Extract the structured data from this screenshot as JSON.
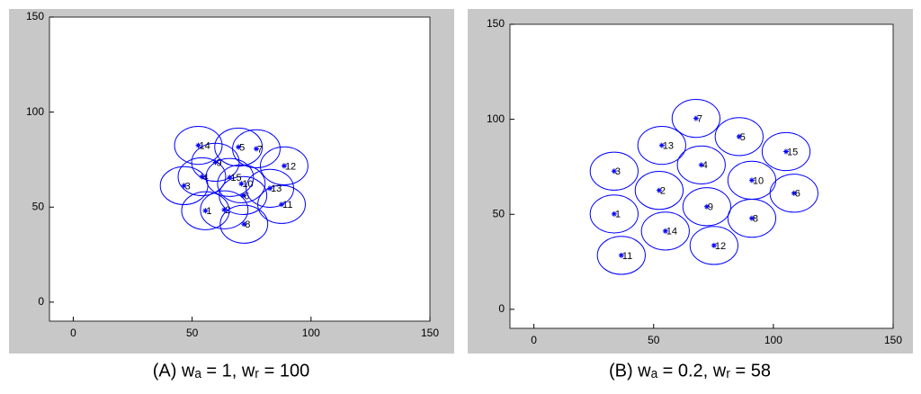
{
  "chart_data": [
    {
      "type": "scatter",
      "caption": "(A) wₐ = 1, wᵣ = 100",
      "color": "#0000ff",
      "radius": 10,
      "point_labels": [
        "1",
        "2",
        "3",
        "4",
        "5",
        "6",
        "7",
        "8",
        "9",
        "10",
        "11",
        "12",
        "13",
        "14",
        "15"
      ],
      "x": [
        55.6,
        63.5,
        46.6,
        54.1,
        69.5,
        71.4,
        77,
        71.8,
        59.8,
        70.7,
        87.6,
        88.7,
        82.7,
        52.6,
        65.8
      ],
      "y": [
        48.1,
        48.6,
        61.3,
        66,
        81.6,
        56.1,
        80.7,
        41,
        73.6,
        62.3,
        51.4,
        71.7,
        59.9,
        82.5,
        65.6
      ],
      "xlim": [
        -10,
        150
      ],
      "ylim": [
        -10,
        150
      ],
      "xticks": [
        0,
        50,
        100,
        150
      ],
      "yticks": [
        0,
        50,
        100,
        150
      ]
    },
    {
      "type": "scatter",
      "caption": "(B) wₐ = 0.2, wᵣ = 58",
      "color": "#0000ff",
      "radius": 10,
      "point_labels": [
        "1",
        "2",
        "3",
        "4",
        "5",
        "6",
        "7",
        "8",
        "9",
        "10",
        "11",
        "12",
        "13",
        "14",
        "15"
      ],
      "x": [
        33.5,
        52.3,
        33.5,
        69.9,
        85.7,
        108.6,
        67.7,
        91,
        72.2,
        91,
        36.5,
        75.2,
        53.4,
        54.9,
        105.3
      ],
      "y": [
        50.2,
        62.6,
        72.7,
        76,
        90.9,
        61.1,
        100.5,
        47.9,
        54,
        67.9,
        28.4,
        33.6,
        86.3,
        41.2,
        83
      ],
      "xlim": [
        -10,
        150
      ],
      "ylim": [
        -10,
        150
      ],
      "xticks": [
        0,
        50,
        100,
        150
      ],
      "yticks": [
        0,
        50,
        100,
        150
      ]
    }
  ]
}
